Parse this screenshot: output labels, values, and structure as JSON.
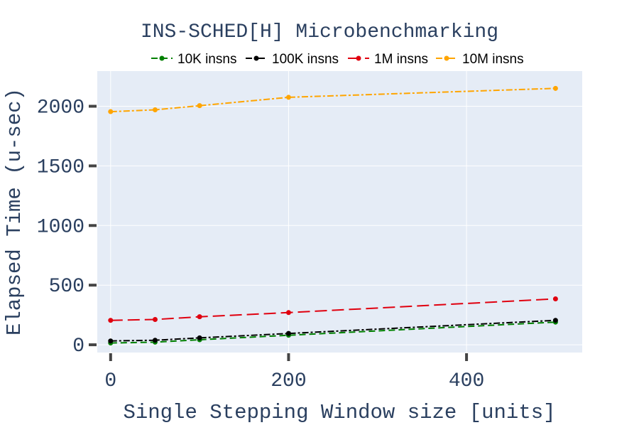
{
  "chart_data": {
    "type": "line",
    "title": "INS-SCHED[H] Microbenchmarking",
    "xlabel": "Single Stepping Window size [units]",
    "ylabel": "Elapsed Time (u-sec)",
    "xlim": [
      -15,
      530
    ],
    "ylim": [
      -65,
      2295
    ],
    "x_ticks": [
      0,
      200,
      400
    ],
    "y_ticks": [
      0,
      500,
      1000,
      1500,
      2000
    ],
    "grid": true,
    "legend_position": "top",
    "plot_background": "#e5ecf6",
    "series": [
      {
        "name": "10K insns",
        "color": "#008000",
        "dash": "dash",
        "x": [
          0,
          50,
          100,
          200,
          500
        ],
        "y": [
          15,
          22,
          42,
          80,
          190
        ]
      },
      {
        "name": "100K insns",
        "color": "#000000",
        "dash": "dashdot",
        "x": [
          0,
          50,
          100,
          200,
          500
        ],
        "y": [
          32,
          38,
          58,
          95,
          205
        ]
      },
      {
        "name": "1M insns",
        "color": "#e0000f",
        "dash": "longdash",
        "x": [
          0,
          50,
          100,
          200,
          500
        ],
        "y": [
          205,
          212,
          235,
          270,
          385
        ]
      },
      {
        "name": "10M insns",
        "color": "#ffa500",
        "dash": "dashdot",
        "x": [
          0,
          50,
          100,
          200,
          500
        ],
        "y": [
          1955,
          1970,
          2005,
          2075,
          2150
        ]
      }
    ]
  }
}
